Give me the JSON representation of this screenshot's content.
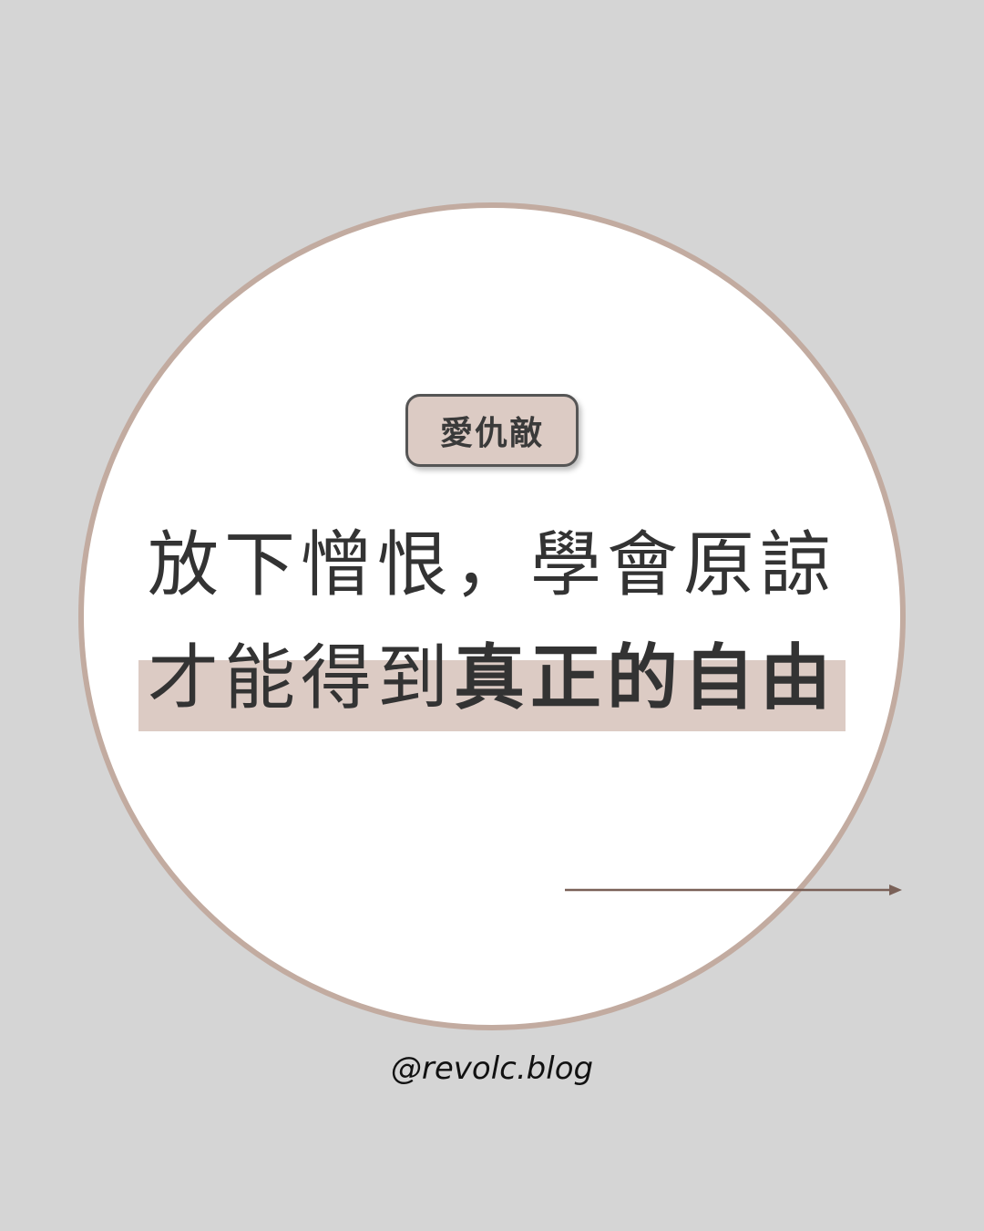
{
  "tag": {
    "label": "愛仇敵"
  },
  "headline": {
    "line1": "放下憎恨，學會原諒",
    "line2_regular": "才能得到",
    "line2_bold": "真正的自由"
  },
  "footer": {
    "handle": "@revolc.blog"
  },
  "colors": {
    "background": "#d5d5d5",
    "circle_border": "#c2aba0",
    "highlight": "#dccbc4",
    "arrow": "#7a6158"
  },
  "icons": {
    "arrow": "arrow-right-icon"
  }
}
